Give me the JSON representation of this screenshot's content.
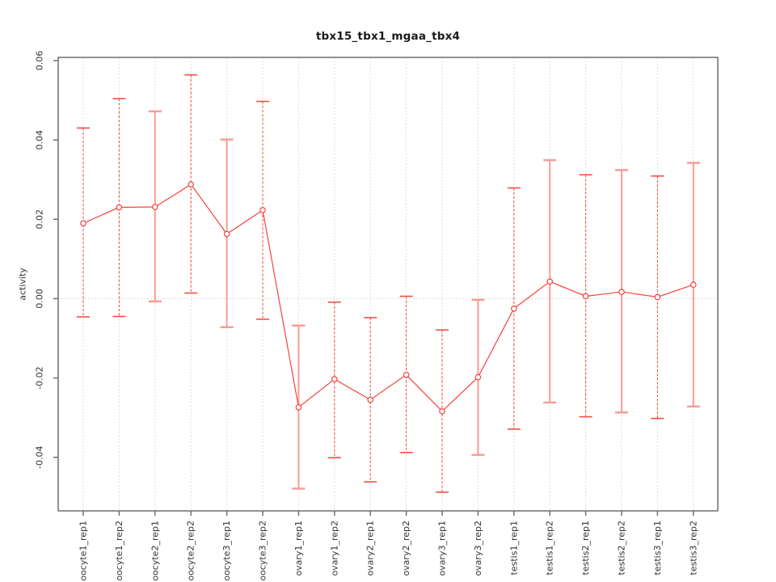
{
  "chart_data": {
    "type": "line",
    "title": "tbx15_tbx1_mgaa_tbx4",
    "ylabel": "activity",
    "xlabel": "",
    "legend": "none",
    "grid": {
      "vertical_dotted": true,
      "zero_line_dotted": true,
      "horizontal_gridlines": false
    },
    "ylim": [
      -0.0535,
      0.0608
    ],
    "yticks": [
      -0.04,
      -0.02,
      0,
      0.02,
      0.04,
      0.06
    ],
    "ytick_labels": [
      "-0.04",
      "-0.02",
      "0.00",
      "0.02",
      "0.04",
      "0.06"
    ],
    "categories": [
      "oocyte1_rep1",
      "oocyte1_rep2",
      "oocyte2_rep1",
      "oocyte2_rep2",
      "oocyte3_rep1",
      "oocyte3_rep2",
      "ovary1_rep1",
      "ovary1_rep2",
      "ovary2_rep1",
      "ovary2_rep2",
      "ovary3_rep1",
      "ovary3_rep2",
      "testis1_rep1",
      "testis1_rep2",
      "testis2_rep1",
      "testis2_rep2",
      "testis3_rep1",
      "testis3_rep2"
    ],
    "series": [
      {
        "name": "activity",
        "values": [
          0.019,
          0.023,
          0.0231,
          0.0288,
          0.0163,
          0.0223,
          -0.0274,
          -0.0203,
          -0.0255,
          -0.0192,
          -0.0284,
          -0.0198,
          -0.0025,
          0.0043,
          0.0006,
          0.0017,
          0.0004,
          0.0035
        ],
        "error_high": [
          0.043,
          0.0504,
          0.0472,
          0.0564,
          0.0401,
          0.0497,
          -0.0068,
          -0.0009,
          -0.0048,
          0.0006,
          -0.0079,
          -0.0003,
          0.0279,
          0.0349,
          0.0312,
          0.0324,
          0.0309,
          0.0342
        ],
        "error_low": [
          -0.0046,
          -0.0045,
          -0.0007,
          0.0014,
          -0.0072,
          -0.0052,
          -0.0479,
          -0.0401,
          -0.0462,
          -0.0388,
          -0.0488,
          -0.0394,
          -0.0329,
          -0.0262,
          -0.0298,
          -0.0287,
          -0.0302,
          -0.0272
        ]
      }
    ],
    "errorbar_styles": [
      "dashed",
      "dashed",
      "solid",
      "dashed",
      "solid",
      "dashed",
      "solid",
      "dashed",
      "dashed",
      "dashed",
      "dashed",
      "solid",
      "dashed",
      "solid",
      "dashed",
      "solid",
      "dashed",
      "solid"
    ],
    "marker": "open-circle",
    "colors": {
      "line": "#f4443c",
      "marker": "#f4443c",
      "marker_fill": "#ffffff",
      "errorbar_dashed": "#f4443c",
      "errorbar_solid": "#f89c94",
      "grid": "#d6d6d6",
      "zero_line": "#d0d0d0",
      "axis": "#6e6e6e",
      "tick_text": "#333333",
      "title_text": "#1a1a1a"
    }
  }
}
